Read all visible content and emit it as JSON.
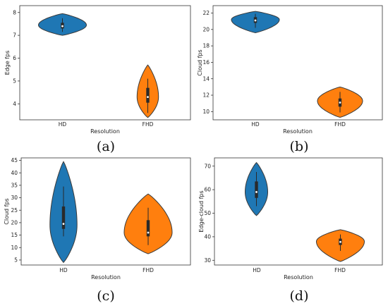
{
  "colors": {
    "hd": "#1f77b4",
    "fhd": "#ff7f0e"
  },
  "chart_data": [
    {
      "type": "violin",
      "caption": "(a)",
      "xlabel": "Resolution",
      "ylabel": "Edge fps",
      "categories": [
        "HD",
        "FHD"
      ],
      "ylim": [
        3.3,
        8.3
      ],
      "yticks": [
        4,
        5,
        6,
        7,
        8
      ],
      "violins": [
        {
          "category": "HD",
          "min": 7.0,
          "max": 7.95,
          "mode": 7.45,
          "width": 0.85,
          "q1": 7.3,
          "median": 7.4,
          "q3": 7.55,
          "whisker_low": 7.15,
          "whisker_high": 7.75
        },
        {
          "category": "FHD",
          "min": 3.4,
          "max": 5.7,
          "mode": 4.3,
          "width": 0.38,
          "q1": 4.05,
          "median": 4.3,
          "q3": 4.7,
          "whisker_low": 3.6,
          "whisker_high": 5.1
        }
      ]
    },
    {
      "type": "violin",
      "caption": "(b)",
      "xlabel": "Resolution",
      "ylabel": "Cloud fps",
      "categories": [
        "HD",
        "FHD"
      ],
      "ylim": [
        9,
        22.9
      ],
      "yticks": [
        10,
        12,
        14,
        16,
        18,
        20,
        22
      ],
      "violins": [
        {
          "category": "HD",
          "min": 19.6,
          "max": 22.2,
          "mode": 21.2,
          "width": 0.85,
          "q1": 20.8,
          "median": 21.1,
          "q3": 21.5,
          "whisker_low": 20.2,
          "whisker_high": 21.9
        },
        {
          "category": "FHD",
          "min": 9.3,
          "max": 13.0,
          "mode": 11.3,
          "width": 0.8,
          "q1": 10.6,
          "median": 11.1,
          "q3": 11.6,
          "whisker_low": 9.9,
          "whisker_high": 12.4
        }
      ]
    },
    {
      "type": "violin",
      "caption": "(c)",
      "xlabel": "Resolution",
      "ylabel": "Cloud fps",
      "categories": [
        "HD",
        "FHD"
      ],
      "ylim": [
        3,
        46
      ],
      "yticks": [
        5,
        10,
        15,
        20,
        25,
        30,
        35,
        40,
        45
      ],
      "violins": [
        {
          "category": "HD",
          "min": 4.0,
          "max": 44.5,
          "mode": 19.0,
          "width": 0.48,
          "q1": 17.5,
          "median": 19.5,
          "q3": 26.5,
          "whisker_low": 14.5,
          "whisker_high": 34.5
        },
        {
          "category": "FHD",
          "min": 7.5,
          "max": 31.5,
          "mode": 16.0,
          "width": 0.85,
          "q1": 14.5,
          "median": 16.0,
          "q3": 21.0,
          "whisker_low": 11.0,
          "whisker_high": 26.0
        }
      ]
    },
    {
      "type": "violin",
      "caption": "(d)",
      "xlabel": "Resolution",
      "ylabel": "Edge-cloud fps",
      "categories": [
        "HD",
        "FHD"
      ],
      "ylim": [
        28,
        73.5
      ],
      "yticks": [
        30,
        40,
        50,
        60,
        70
      ],
      "violins": [
        {
          "category": "HD",
          "min": 49.0,
          "max": 71.5,
          "mode": 59.0,
          "width": 0.4,
          "q1": 56.5,
          "median": 59.0,
          "q3": 63.5,
          "whisker_low": 53.0,
          "whisker_high": 67.5
        },
        {
          "category": "FHD",
          "min": 29.5,
          "max": 43.0,
          "mode": 38.0,
          "width": 0.85,
          "q1": 36.5,
          "median": 37.8,
          "q3": 39.2,
          "whisker_low": 34.0,
          "whisker_high": 41.0
        }
      ]
    }
  ]
}
